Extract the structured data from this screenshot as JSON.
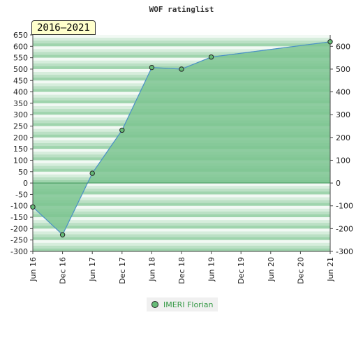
{
  "chart_data": {
    "type": "area",
    "title": "WOF ratinglist",
    "period_label": "2016–2021",
    "x": [
      "Jun 16",
      "Dec 16",
      "Jun 17",
      "Dec 17",
      "Jun 18",
      "Dec 18",
      "Jun 19",
      "Jun 21"
    ],
    "x_ticks": [
      "Jun 16",
      "Dec 16",
      "Jun 17",
      "Dec 17",
      "Jun 18",
      "Dec 18",
      "Jun 19",
      "Dec 19",
      "Jun 20",
      "Dec 20",
      "Jun 21"
    ],
    "series": [
      {
        "name": "IMERI Florian",
        "values": [
          -105,
          -227,
          43,
          232,
          507,
          500,
          553,
          620
        ]
      }
    ],
    "ylim": [
      -300,
      650
    ],
    "y_ticks": [
      -300,
      -250,
      -200,
      -150,
      -100,
      -50,
      0,
      50,
      100,
      150,
      200,
      250,
      300,
      350,
      400,
      450,
      500,
      550,
      600,
      650
    ],
    "y2_ticks": [
      -300,
      -200,
      -100,
      0,
      100,
      200,
      300,
      400,
      500,
      600
    ],
    "grid": false,
    "legend_position": "bottom-center",
    "colors": {
      "fill": "#7cc491",
      "line": "#4a90c8",
      "marker": "#66bb77",
      "band_light": "#f2f9f4",
      "band_dark": "#9fd4ad"
    }
  }
}
